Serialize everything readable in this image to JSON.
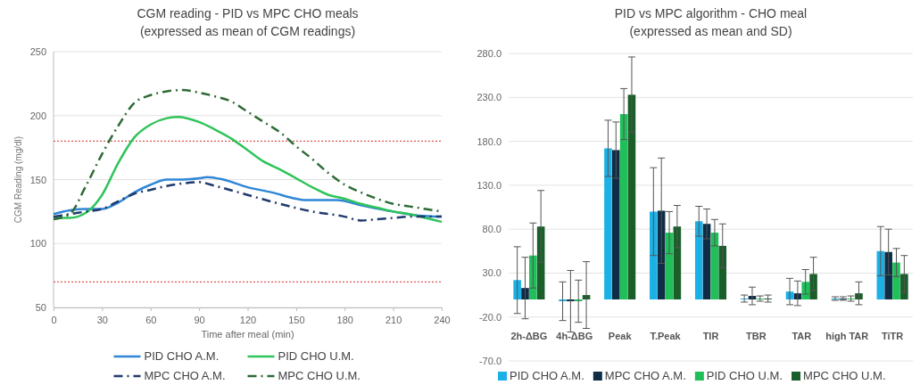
{
  "chart_data": [
    {
      "type": "line",
      "title": "CGM reading - PID vs MPC CHO meals",
      "subtitle": "(expressed as mean of CGM readings)",
      "xlabel": "Time after meal (min)",
      "ylabel": "CGM Reading (mg/dl)",
      "xlim": [
        0,
        240
      ],
      "xticks": [
        0,
        30,
        60,
        90,
        120,
        150,
        180,
        210,
        240
      ],
      "ylim": [
        50,
        250
      ],
      "yticks": [
        50,
        100,
        150,
        200,
        250
      ],
      "grid": "y",
      "legend": "bottom",
      "marker": "none",
      "ref_lines": [
        {
          "axis": "y",
          "value": 180,
          "color": "#e05555",
          "line_style": "dotted"
        },
        {
          "axis": "y",
          "value": 70,
          "color": "#e05555",
          "line_style": "dotted"
        }
      ],
      "series": [
        {
          "name": "PID CHO A.M.",
          "color": "#2f86d6",
          "line_style": "solid",
          "x": [
            0,
            10,
            20,
            30,
            40,
            50,
            60,
            70,
            80,
            90,
            95,
            105,
            120,
            135,
            150,
            155,
            165,
            175,
            190,
            210,
            225,
            240
          ],
          "values": [
            123,
            126,
            127,
            127,
            132,
            140,
            146,
            150,
            150,
            151,
            152,
            150,
            144,
            140,
            135,
            134,
            134,
            134,
            130,
            125,
            122,
            121
          ]
        },
        {
          "name": "PID CHO U.M.",
          "color": "#2fc45a",
          "line_style": "solid",
          "x": [
            0,
            10,
            20,
            30,
            40,
            50,
            60,
            70,
            77,
            90,
            100,
            110,
            120,
            130,
            140,
            150,
            160,
            170,
            180,
            190,
            200,
            210,
            220,
            230,
            240
          ],
          "values": [
            120,
            120,
            124,
            138,
            163,
            183,
            193,
            198,
            199,
            195,
            189,
            182,
            173,
            164,
            158,
            151,
            144,
            138,
            135,
            131,
            128,
            125,
            123,
            120,
            117
          ]
        },
        {
          "name": "MPC CHO A.M.",
          "color": "#1f3a6e",
          "line_style": "dashed",
          "x": [
            0,
            10,
            20,
            30,
            40,
            50,
            60,
            70,
            80,
            90,
            100,
            120,
            140,
            160,
            180,
            190,
            200,
            210,
            220,
            240
          ],
          "values": [
            121,
            123,
            125,
            127,
            133,
            139,
            142,
            145,
            147,
            148,
            145,
            138,
            131,
            125,
            121,
            118,
            119,
            120,
            121,
            121
          ]
        },
        {
          "name": "MPC CHO U.M.",
          "color": "#2e6b35",
          "line_style": "dashed",
          "x": [
            0,
            10,
            20,
            30,
            40,
            50,
            60,
            70,
            80,
            90,
            100,
            110,
            120,
            130,
            140,
            150,
            160,
            170,
            180,
            190,
            200,
            210,
            220,
            230,
            240
          ],
          "values": [
            119,
            123,
            145,
            170,
            192,
            210,
            216,
            219,
            220,
            218,
            215,
            211,
            203,
            195,
            187,
            176,
            166,
            155,
            146,
            140,
            135,
            131,
            129,
            127,
            125
          ]
        }
      ]
    },
    {
      "type": "bar",
      "title": "PID vs MPC algorithm - CHO meal",
      "subtitle": "(expressed as mean and SD)",
      "categories": [
        "2h-ΔBG",
        "4h-ΔBG",
        "Peak",
        "T.Peak",
        "TIR",
        "TBR",
        "TAR",
        "high TAR",
        "TiTR"
      ],
      "ylim": [
        -70,
        280
      ],
      "yticks": [
        {
          "value": -70,
          "label": "-70.0"
        },
        {
          "value": -20,
          "label": "-20.0"
        },
        {
          "value": 30,
          "label": "30.0"
        },
        {
          "value": 80,
          "label": "80.0"
        },
        {
          "value": 130,
          "label": "130.0"
        },
        {
          "value": 180,
          "label": "180.0"
        },
        {
          "value": 230,
          "label": "230.0"
        },
        {
          "value": 280,
          "label": "280.0"
        }
      ],
      "grid": "y",
      "legend": "bottom",
      "series": [
        {
          "name": "PID CHO A.M.",
          "color": "#1bb0e6",
          "values": [
            22,
            -2,
            172,
            100,
            89,
            1,
            9,
            1,
            55
          ],
          "errors": [
            38,
            22,
            32,
            50,
            17,
            4,
            15,
            2,
            28
          ]
        },
        {
          "name": "MPC CHO A.M.",
          "color": "#0f2d45",
          "values": [
            13,
            -2,
            170,
            101,
            86,
            4,
            7,
            1,
            54
          ],
          "errors": [
            35,
            35,
            32,
            60,
            17,
            10,
            14,
            2,
            26
          ]
        },
        {
          "name": "PID CHO U.M.",
          "color": "#1fbf5a",
          "values": [
            50,
            -2,
            211,
            76,
            76,
            1,
            20,
            1,
            42
          ],
          "errors": [
            37,
            24,
            29,
            24,
            15,
            3,
            14,
            3,
            16
          ]
        },
        {
          "name": "MPC CHO U.M.",
          "color": "#1a5e2a",
          "values": [
            83,
            5,
            233,
            83,
            61,
            1,
            29,
            7,
            29
          ],
          "errors": [
            41,
            38,
            43,
            24,
            25,
            4,
            19,
            13,
            21
          ]
        }
      ]
    }
  ]
}
